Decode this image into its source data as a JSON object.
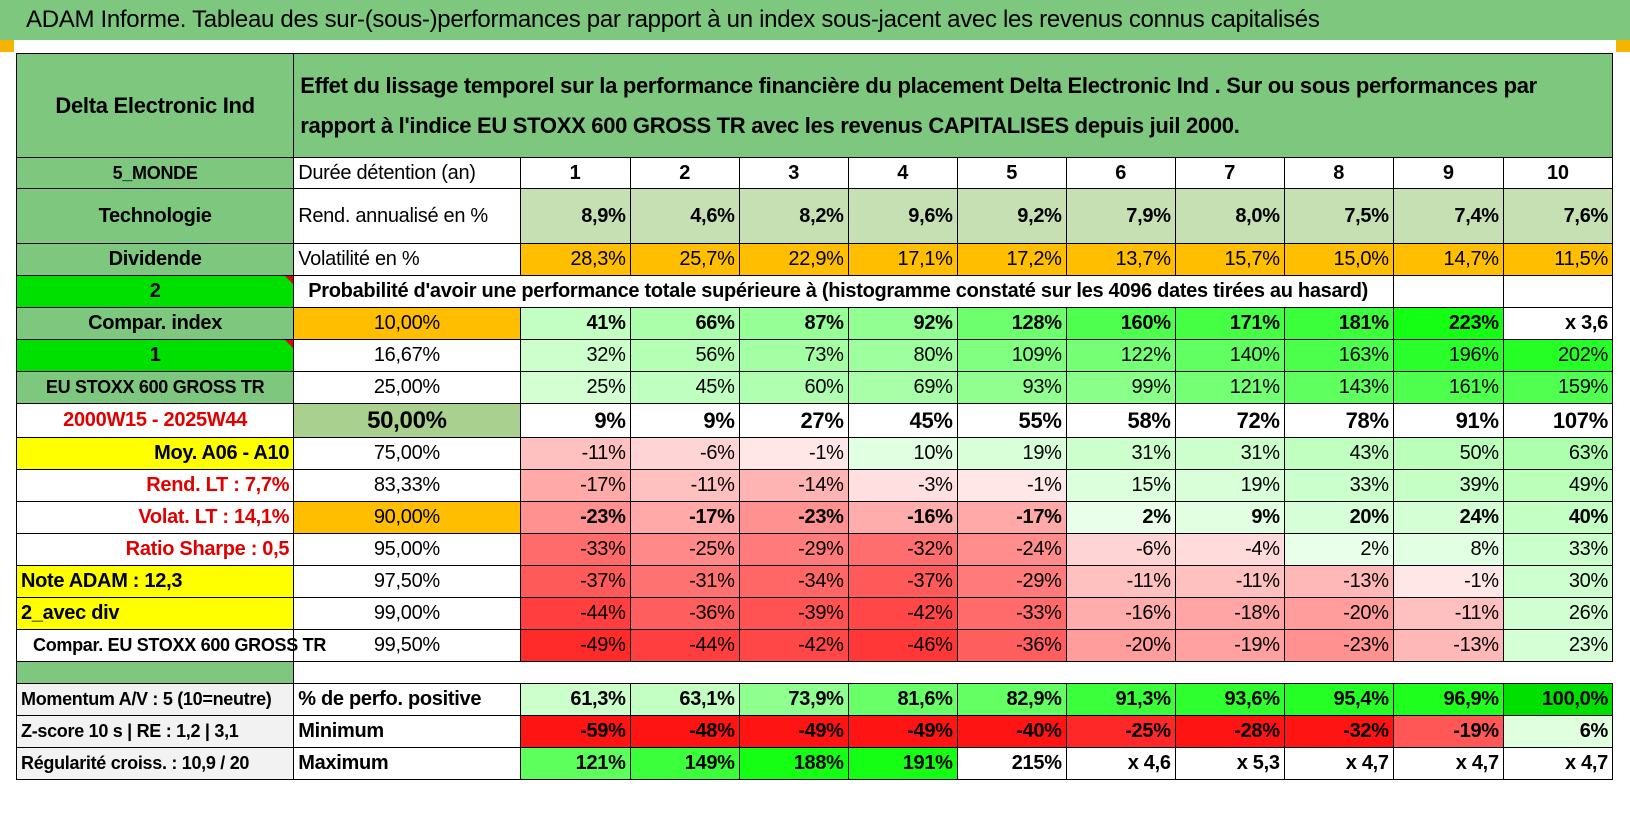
{
  "title": "ADAM Informe. Tableau des sur-(sous-)performances par rapport à un index sous-jacent avec les revenus connus capitalisés",
  "stock_name": "Delta Electronic Ind",
  "description": "Effet du lissage temporel sur la performance financière du placement Delta Electronic Ind . Sur ou sous performances par rapport à l'indice EU STOXX 600 GROSS TR avec les revenus CAPITALISES depuis juil 2000.",
  "left_info": {
    "region": "5_MONDE",
    "sector": "Technologie",
    "dividend": "Dividende",
    "code2": "2",
    "compar_index": "Compar. index",
    "code1": "1",
    "index_name": "EU STOXX 600 GROSS TR",
    "period": "2000W15 - 2025W44",
    "moy": "Moy. A06 - A10",
    "rend_lt": "Rend. LT :    7,7%",
    "volat_lt": "Volat. LT :    14,1%",
    "ratio_sharpe": "Ratio Sharpe :     0,5",
    "note_adam": "Note ADAM : 12,3",
    "avec_div": "2_avec div",
    "compar_eu": "Compar. EU STOXX 600 GROSS TR",
    "momentum": "Momentum A/V : 5 (10=neutre)",
    "zscore": "Z-score 10 s | RE : 1,2  | 3,1",
    "regularite": "Régularité croiss. : 10,9 / 20"
  },
  "header_rows": {
    "duree_label": "Durée détention (an)",
    "years": [
      "1",
      "2",
      "3",
      "4",
      "5",
      "6",
      "7",
      "8",
      "9",
      "10"
    ],
    "rend_label": "Rend. annualisé en %",
    "rend": [
      "8,9%",
      "4,6%",
      "8,2%",
      "9,6%",
      "9,2%",
      "7,9%",
      "8,0%",
      "7,5%",
      "7,4%",
      "7,6%"
    ],
    "vol_label": "Volatilité en %",
    "vol": [
      "28,3%",
      "25,7%",
      "22,9%",
      "17,1%",
      "17,2%",
      "13,7%",
      "15,7%",
      "15,0%",
      "14,7%",
      "11,5%"
    ]
  },
  "prob_title": "Probabilité d'avoir une performance totale supérieure à (histogramme constaté sur les 4096 dates tirées au hasard)",
  "percentile_rows": [
    {
      "pct": "10,00%",
      "values": [
        "41%",
        "66%",
        "87%",
        "92%",
        "128%",
        "160%",
        "171%",
        "181%",
        "223%",
        "x 3,6"
      ]
    },
    {
      "pct": "16,67%",
      "values": [
        "32%",
        "56%",
        "73%",
        "80%",
        "109%",
        "122%",
        "140%",
        "163%",
        "196%",
        "202%"
      ]
    },
    {
      "pct": "25,00%",
      "values": [
        "25%",
        "45%",
        "60%",
        "69%",
        "93%",
        "99%",
        "121%",
        "143%",
        "161%",
        "159%"
      ]
    },
    {
      "pct": "50,00%",
      "values": [
        "9%",
        "9%",
        "27%",
        "45%",
        "55%",
        "58%",
        "72%",
        "78%",
        "91%",
        "107%"
      ]
    },
    {
      "pct": "75,00%",
      "values": [
        "-11%",
        "-6%",
        "-1%",
        "10%",
        "19%",
        "31%",
        "31%",
        "43%",
        "50%",
        "63%"
      ]
    },
    {
      "pct": "83,33%",
      "values": [
        "-17%",
        "-11%",
        "-14%",
        "-3%",
        "-1%",
        "15%",
        "19%",
        "33%",
        "39%",
        "49%"
      ]
    },
    {
      "pct": "90,00%",
      "values": [
        "-23%",
        "-17%",
        "-23%",
        "-16%",
        "-17%",
        "2%",
        "9%",
        "20%",
        "24%",
        "40%"
      ]
    },
    {
      "pct": "95,00%",
      "values": [
        "-33%",
        "-25%",
        "-29%",
        "-32%",
        "-24%",
        "-6%",
        "-4%",
        "2%",
        "8%",
        "33%"
      ]
    },
    {
      "pct": "97,50%",
      "values": [
        "-37%",
        "-31%",
        "-34%",
        "-37%",
        "-29%",
        "-11%",
        "-11%",
        "-13%",
        "-1%",
        "30%"
      ]
    },
    {
      "pct": "99,00%",
      "values": [
        "-44%",
        "-36%",
        "-39%",
        "-42%",
        "-33%",
        "-16%",
        "-18%",
        "-20%",
        "-11%",
        "26%"
      ]
    },
    {
      "pct": "99,50%",
      "values": [
        "-49%",
        "-44%",
        "-42%",
        "-46%",
        "-36%",
        "-20%",
        "-19%",
        "-23%",
        "-13%",
        "23%"
      ]
    }
  ],
  "bottom_rows": [
    {
      "label": "% de perfo. positive",
      "values": [
        "61,3%",
        "63,1%",
        "73,9%",
        "81,6%",
        "82,9%",
        "91,3%",
        "93,6%",
        "95,4%",
        "96,9%",
        "100,0%"
      ]
    },
    {
      "label": "Minimum",
      "values": [
        "-59%",
        "-48%",
        "-49%",
        "-49%",
        "-40%",
        "-25%",
        "-28%",
        "-32%",
        "-19%",
        "6%"
      ]
    },
    {
      "label": "Maximum",
      "values": [
        "121%",
        "149%",
        "188%",
        "191%",
        "215%",
        "x 4,6",
        "x 5,3",
        "x 4,7",
        "x 4,7",
        "x 4,7"
      ]
    }
  ],
  "colors": {
    "header_green": "#7dc77f",
    "bright_green": "#00e000",
    "yellow": "#ffff00",
    "orange": "#ffbf00",
    "pale_green": "#c6e0b4",
    "median_green": "#a9d08e"
  }
}
